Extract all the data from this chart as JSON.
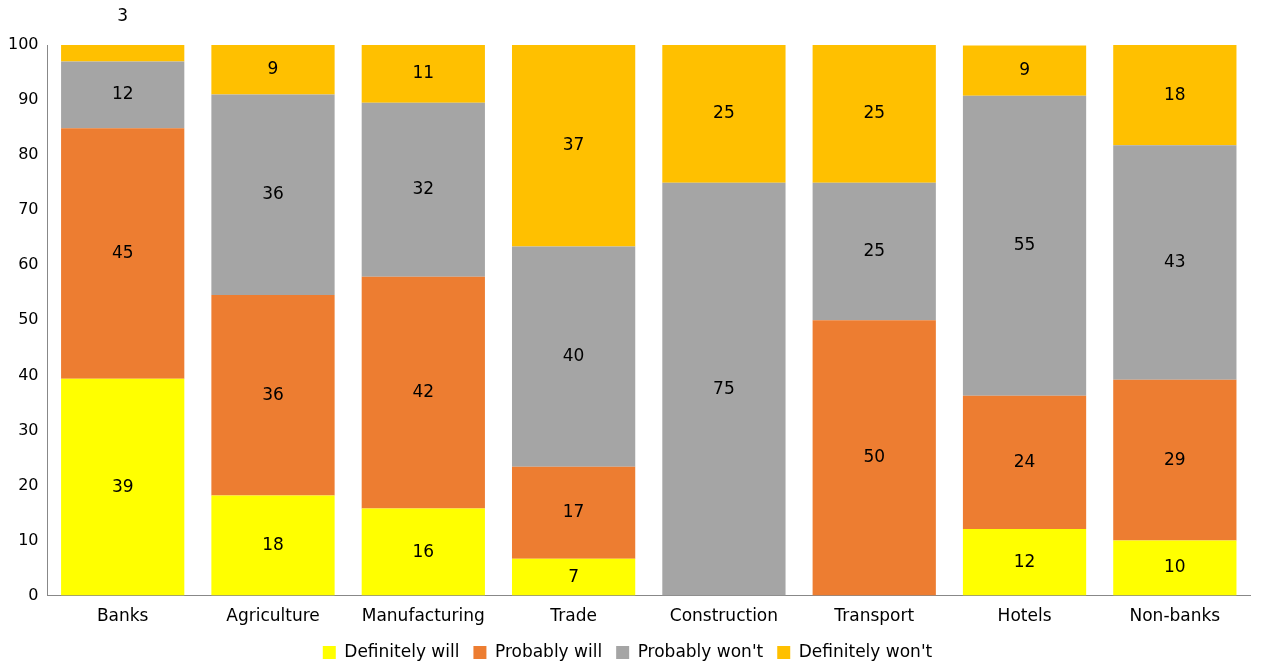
{
  "chart_data": {
    "type": "bar",
    "stacked": true,
    "categories": [
      "Banks",
      "Agriculture",
      "Manufacturing",
      "Trade",
      "Construction",
      "Transport",
      "Hotels",
      "Non-banks"
    ],
    "series": [
      {
        "name": "Definitely will",
        "color": "#ffff00",
        "values": [
          39.4,
          18.2,
          15.8,
          6.7,
          0,
          0,
          12.1,
          10
        ],
        "value_labels": [
          "39",
          "18",
          "16",
          "7",
          null,
          null,
          "12",
          "10"
        ]
      },
      {
        "name": "Probably will",
        "color": "#ed7d31",
        "values": [
          45.5,
          36.4,
          42.1,
          16.7,
          0,
          50,
          24.2,
          29.2
        ],
        "value_labels": [
          "45",
          "36",
          "42",
          "17",
          null,
          "50",
          "24",
          "29"
        ]
      },
      {
        "name": "Probably won't",
        "color": "#a5a5a5",
        "values": [
          12.1,
          36.4,
          31.6,
          40.0,
          75,
          25,
          54.5,
          42.6
        ],
        "value_labels": [
          "12",
          "36",
          "32",
          "40",
          "75",
          "25",
          "55",
          "43"
        ]
      },
      {
        "name": "Definitely won't",
        "color": "#ffc000",
        "values": [
          3.0,
          9.0,
          10.5,
          36.6,
          25,
          25,
          9.1,
          18.2
        ],
        "value_labels": [
          "3",
          "9",
          "11",
          "37",
          "25",
          "25",
          "9",
          "18"
        ]
      }
    ],
    "ylim": [
      0,
      100
    ],
    "yticks": [
      0,
      10,
      20,
      30,
      40,
      50,
      60,
      70,
      80,
      90,
      100
    ],
    "grid": false,
    "legend": "bottom"
  }
}
